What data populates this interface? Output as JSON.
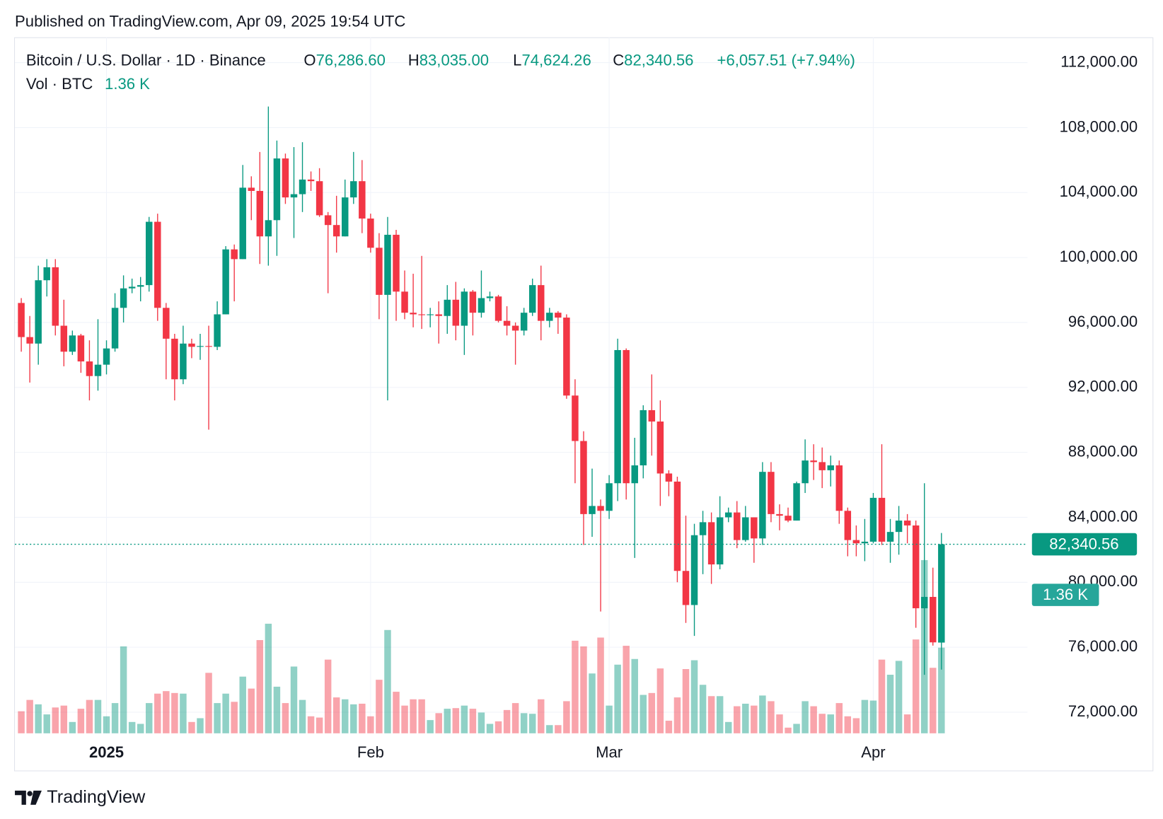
{
  "header": "Published on TradingView.com, Apr 09, 2025 19:54 UTC",
  "footer": "TradingView",
  "chart_data": {
    "type": "candlestick",
    "title": "Bitcoin / U.S. Dollar · 1D · Binance",
    "ohlc_legend": [
      {
        "key": "O",
        "value": "76,286.60"
      },
      {
        "key": "H",
        "value": "83,035.00"
      },
      {
        "key": "L",
        "value": "74,624.26"
      },
      {
        "key": "C",
        "value": "82,340.56"
      }
    ],
    "change": "+6,057.51 (+7.94%)",
    "volume_title": "Vol · BTC",
    "volume_label": "1.36 K",
    "last_price_label": "82,340.56",
    "up_color": "#089981",
    "down_color": "#f23645",
    "grid": true,
    "candles": [
      [
        97200,
        97500,
        94200,
        95100
      ],
      [
        95100,
        96400,
        92300,
        94700
      ],
      [
        94700,
        99500,
        93400,
        98600
      ],
      [
        98600,
        99900,
        97600,
        99400
      ],
      [
        99400,
        99900,
        95200,
        95800
      ],
      [
        95800,
        97400,
        93300,
        94200
      ],
      [
        94200,
        95500,
        94000,
        95200
      ],
      [
        95200,
        95300,
        92900,
        93600
      ],
      [
        93600,
        94900,
        91200,
        92700
      ],
      [
        92700,
        96200,
        91800,
        93400
      ],
      [
        93400,
        94900,
        92800,
        94400
      ],
      [
        94400,
        97800,
        94200,
        96900
      ],
      [
        96900,
        98900,
        96000,
        98100
      ],
      [
        98100,
        98700,
        97800,
        98200
      ],
      [
        98200,
        98800,
        97300,
        98300
      ],
      [
        98300,
        102500,
        97900,
        102200
      ],
      [
        102200,
        102700,
        96100,
        96900
      ],
      [
        96900,
        97200,
        92500,
        95000
      ],
      [
        95000,
        95300,
        91200,
        92500
      ],
      [
        92500,
        95800,
        92200,
        94700
      ],
      [
        94700,
        95000,
        93800,
        94500
      ],
      [
        94500,
        95300,
        93700,
        94550
      ],
      [
        94550,
        95800,
        89400,
        94500
      ],
      [
        94500,
        97300,
        94300,
        96500
      ],
      [
        96500,
        100700,
        96500,
        100500
      ],
      [
        100500,
        100800,
        97300,
        99900
      ],
      [
        99900,
        105700,
        99900,
        104300
      ],
      [
        104300,
        105000,
        102300,
        104100
      ],
      [
        104100,
        106500,
        99600,
        101300
      ],
      [
        101300,
        109300,
        99500,
        102300
      ],
      [
        102300,
        107200,
        100100,
        106100
      ],
      [
        106100,
        106400,
        103300,
        103700
      ],
      [
        103700,
        106800,
        101200,
        103900
      ],
      [
        103900,
        107100,
        102800,
        104800
      ],
      [
        104800,
        105300,
        104100,
        104700
      ],
      [
        104700,
        105500,
        102500,
        102600
      ],
      [
        102600,
        102800,
        97800,
        102000
      ],
      [
        102000,
        103800,
        100300,
        101300
      ],
      [
        101300,
        104800,
        101300,
        103700
      ],
      [
        103700,
        106500,
        103300,
        104700
      ],
      [
        104700,
        106000,
        101500,
        102400
      ],
      [
        102400,
        102700,
        100300,
        100600
      ],
      [
        100600,
        101500,
        96200,
        97700
      ],
      [
        97700,
        102500,
        91200,
        101400
      ],
      [
        101400,
        101700,
        96100,
        97900
      ],
      [
        97900,
        99200,
        96200,
        96600
      ],
      [
        96600,
        99000,
        95700,
        96500
      ],
      [
        96500,
        100100,
        95600,
        96450
      ],
      [
        96450,
        96900,
        95700,
        96500
      ],
      [
        96500,
        97300,
        94700,
        96400
      ],
      [
        96400,
        98300,
        95300,
        97400
      ],
      [
        97400,
        98500,
        94900,
        95800
      ],
      [
        95800,
        98100,
        94000,
        97900
      ],
      [
        97900,
        98000,
        95200,
        96600
      ],
      [
        96600,
        99200,
        96300,
        97500
      ],
      [
        97500,
        97900,
        97300,
        97600
      ],
      [
        97600,
        97700,
        96000,
        96100
      ],
      [
        96100,
        97000,
        95200,
        95800
      ],
      [
        95800,
        96000,
        93400,
        95500
      ],
      [
        95500,
        96900,
        95200,
        96600
      ],
      [
        96600,
        98700,
        96400,
        98300
      ],
      [
        98300,
        99500,
        94900,
        96100
      ],
      [
        96100,
        96900,
        95700,
        96600
      ],
      [
        96600,
        96700,
        95300,
        96300
      ],
      [
        96300,
        96500,
        91300,
        91500
      ],
      [
        91500,
        92500,
        86100,
        88700
      ],
      [
        88700,
        89300,
        82300,
        84200
      ],
      [
        84200,
        87000,
        82800,
        84700
      ],
      [
        84700,
        85100,
        78200,
        84400
      ],
      [
        84400,
        86600,
        83900,
        86100
      ],
      [
        86100,
        95000,
        85000,
        94300
      ],
      [
        94300,
        94400,
        85100,
        86100
      ],
      [
        86100,
        88900,
        81500,
        87200
      ],
      [
        87200,
        90900,
        86400,
        90600
      ],
      [
        90600,
        92800,
        87800,
        89900
      ],
      [
        89900,
        91200,
        84700,
        86700
      ],
      [
        86700,
        86900,
        85300,
        86200
      ],
      [
        86200,
        86500,
        80000,
        80700
      ],
      [
        80700,
        84100,
        77500,
        78600
      ],
      [
        78600,
        83600,
        76700,
        82900
      ],
      [
        82900,
        84400,
        80500,
        83700
      ],
      [
        83700,
        84300,
        79900,
        81100
      ],
      [
        81100,
        85300,
        80800,
        84000
      ],
      [
        84000,
        84600,
        83700,
        84300
      ],
      [
        84300,
        85000,
        82100,
        82600
      ],
      [
        82600,
        84700,
        82500,
        84000
      ],
      [
        84000,
        84000,
        81200,
        82700
      ],
      [
        82700,
        87400,
        82300,
        86800
      ],
      [
        86800,
        87400,
        83700,
        84200
      ],
      [
        84200,
        84800,
        83200,
        84100
      ],
      [
        84100,
        84600,
        83700,
        83800
      ],
      [
        83800,
        86200,
        83800,
        86100
      ],
      [
        86100,
        88800,
        85500,
        87500
      ],
      [
        87500,
        88500,
        86300,
        87400
      ],
      [
        87400,
        88300,
        85800,
        86900
      ],
      [
        86900,
        87800,
        85900,
        87200
      ],
      [
        87200,
        87500,
        83600,
        84400
      ],
      [
        84400,
        84600,
        81600,
        82600
      ],
      [
        82600,
        83500,
        81600,
        82400
      ],
      [
        82400,
        83900,
        81300,
        82500
      ],
      [
        82500,
        85500,
        82400,
        85200
      ],
      [
        85200,
        88500,
        82300,
        82500
      ],
      [
        82500,
        83900,
        81200,
        83100
      ],
      [
        83100,
        84700,
        81700,
        83800
      ],
      [
        83800,
        84200,
        82400,
        83500
      ],
      [
        83500,
        83800,
        77200,
        78400
      ],
      [
        78400,
        86100,
        74300,
        79100
      ],
      [
        79100,
        80900,
        76100,
        76300
      ],
      [
        76286.6,
        83035,
        74624.26,
        82340.56
      ]
    ],
    "volumes": [
      0.35,
      0.53,
      0.46,
      0.3,
      0.41,
      0.44,
      0.18,
      0.39,
      0.53,
      0.53,
      0.27,
      0.48,
      1.38,
      0.18,
      0.15,
      0.48,
      0.63,
      0.67,
      0.64,
      0.63,
      0.18,
      0.24,
      0.96,
      0.48,
      0.63,
      0.5,
      0.9,
      0.71,
      1.48,
      1.74,
      0.74,
      0.48,
      1.06,
      0.53,
      0.27,
      0.25,
      1.17,
      0.57,
      0.54,
      0.46,
      0.47,
      0.27,
      0.85,
      1.64,
      0.66,
      0.44,
      0.54,
      0.54,
      0.21,
      0.32,
      0.39,
      0.4,
      0.44,
      0.39,
      0.33,
      0.15,
      0.19,
      0.37,
      0.48,
      0.32,
      0.31,
      0.54,
      0.13,
      0.13,
      0.51,
      1.47,
      1.38,
      0.95,
      1.52,
      0.44,
      1.09,
      1.39,
      1.18,
      0.61,
      0.64,
      1.03,
      0.2,
      0.57,
      1.02,
      1.16,
      0.77,
      0.59,
      0.59,
      0.18,
      0.43,
      0.47,
      0.44,
      0.6,
      0.51,
      0.3,
      0.09,
      0.15,
      0.51,
      0.43,
      0.31,
      0.3,
      0.48,
      0.27,
      0.24,
      0.53,
      0.52,
      1.17,
      0.93,
      1.15,
      0.3,
      1.49,
      2.75,
      1.04,
      1.36
    ],
    "ylim": [
      70700,
      113560
    ],
    "yticks": [
      {
        "value": 72000,
        "label": "72,000.00"
      },
      {
        "value": 76000,
        "label": "76,000.00"
      },
      {
        "value": 80000,
        "label": "80,000.00"
      },
      {
        "value": 84000,
        "label": "84,000.00"
      },
      {
        "value": 88000,
        "label": "88,000.00"
      },
      {
        "value": 92000,
        "label": "92,000.00"
      },
      {
        "value": 96000,
        "label": "96,000.00"
      },
      {
        "value": 100000,
        "label": "100,000.00"
      },
      {
        "value": 104000,
        "label": "104,000.00"
      },
      {
        "value": 108000,
        "label": "108,000.00"
      },
      {
        "value": 112000,
        "label": "112,000.00"
      }
    ],
    "volume_ylim": [
      0,
      11.05
    ],
    "xlim": [
      -0.75,
      118.1
    ],
    "xticks": [
      {
        "value": 10,
        "label": "2025"
      },
      {
        "value": 41,
        "label": "Feb"
      },
      {
        "value": 69,
        "label": "Mar"
      },
      {
        "value": 100,
        "label": "Apr"
      }
    ]
  }
}
